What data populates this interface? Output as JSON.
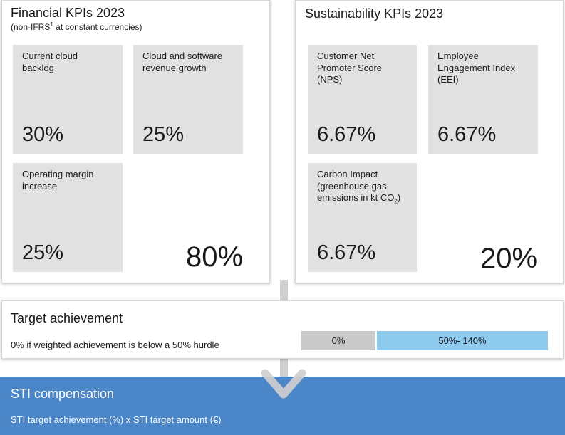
{
  "financial": {
    "title": "Financial KPIs 2023",
    "subtitle_prefix": "(non-IFRS",
    "subtitle_footnote": "1",
    "subtitle_suffix": " at constant currencies)",
    "kpis": [
      {
        "label": "Current cloud\nbacklog",
        "value": "30%"
      },
      {
        "label": "Cloud and software\nrevenue growth",
        "value": "25%"
      },
      {
        "label": "Operating margin\nincrease",
        "value": "25%"
      }
    ],
    "total_weight": "80%"
  },
  "sustainability": {
    "title": "Sustainability KPIs 2023",
    "kpis": [
      {
        "label": "Customer Net\nPromoter Score\n(NPS)",
        "value": "6.67%"
      },
      {
        "label": "Employee\nEngagement Index\n(EEI)",
        "value": "6.67%"
      },
      {
        "label_main": "Carbon Impact\n(greenhouse gas\nemissions in kt CO",
        "label_sub": "2",
        "label_end": ")",
        "value": "6.67%"
      }
    ],
    "total_weight": "20%"
  },
  "target_achievement": {
    "title": "Target achievement",
    "hurdle_text": "0% if weighted achievement is below a 50% hurdle",
    "bar_segments": [
      {
        "label": "0%",
        "color": "#c9c9c9"
      },
      {
        "label": "50%- 140%",
        "color": "#8ec9ee"
      }
    ]
  },
  "sti": {
    "title": "STI compensation",
    "formula": "STI target achievement (%) x STI target amount (€)",
    "color": "#4a86c8"
  },
  "colors": {
    "card_bg": "#e1e1e1",
    "connector": "#cfcfcf"
  }
}
